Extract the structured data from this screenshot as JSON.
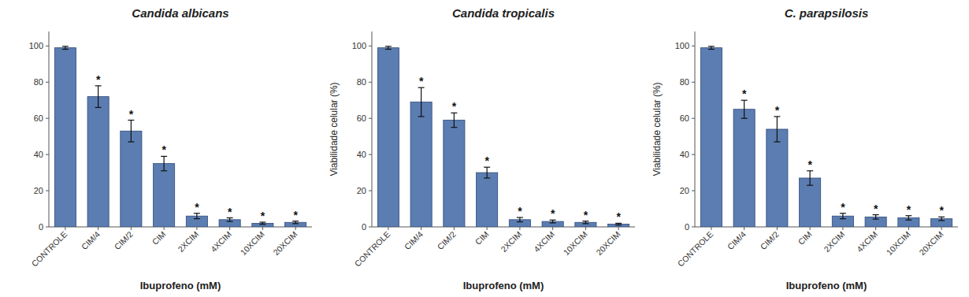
{
  "chart_data": [
    {
      "type": "bar",
      "title": "Candida albicans",
      "xlabel": "Ibuprofeno (mM)",
      "categories": [
        "CONTROLE",
        "CIM/4",
        "CIM/2",
        "CIM",
        "2XCIM",
        "4XCIM",
        "10XCIM",
        "20XCIM"
      ],
      "values": [
        99,
        72,
        53,
        35,
        6,
        4,
        2,
        2.5
      ],
      "errors": [
        0.8,
        6,
        6,
        4,
        1.5,
        1.0,
        0.6,
        0.7
      ],
      "annotations": [
        {
          "category": "CIM/4",
          "text": "*"
        },
        {
          "category": "CIM/2",
          "text": "*"
        },
        {
          "category": "CIM",
          "text": "*"
        },
        {
          "category": "2XCIM",
          "text": "*"
        },
        {
          "category": "4XCIM",
          "text": "*"
        },
        {
          "category": "10XCIM",
          "text": "*"
        },
        {
          "category": "20XCIM",
          "text": "*"
        }
      ],
      "color": "#5b7db1",
      "ylim": [
        0,
        108
      ],
      "yticks": [
        0,
        20,
        40,
        60,
        80,
        100
      ]
    },
    {
      "type": "bar",
      "title": "Candida tropicalis",
      "xlabel": "Ibuprofeno (mM)",
      "ylabel": "Viabilidade celular (%)",
      "categories": [
        "CONTROLE",
        "CIM/4",
        "CIM/2",
        "CIM",
        "2XCIM",
        "4XCIM",
        "10XCIM",
        "20XCIM"
      ],
      "values": [
        99,
        69,
        59,
        30,
        4,
        3,
        2.5,
        1.5
      ],
      "errors": [
        0.8,
        8,
        4,
        3,
        1.2,
        0.8,
        0.7,
        0.5
      ],
      "annotations": [
        {
          "category": "CIM/4",
          "text": "*"
        },
        {
          "category": "CIM/2",
          "text": "*"
        },
        {
          "category": "CIM",
          "text": "*"
        },
        {
          "category": "2XCIM",
          "text": "*"
        },
        {
          "category": "4XCIM",
          "text": "*"
        },
        {
          "category": "10XCIM",
          "text": "*"
        },
        {
          "category": "20XCIM",
          "text": "*"
        }
      ],
      "color": "#5b7db1",
      "ylim": [
        0,
        108
      ],
      "yticks": [
        0,
        20,
        40,
        60,
        80,
        100
      ]
    },
    {
      "type": "bar",
      "title": "C. parapsilosis",
      "xlabel": "Ibuprofeno (mM)",
      "ylabel": "Viabilidade celular (%)",
      "categories": [
        "CONTROLE",
        "CIM/4",
        "CIM/2",
        "CIM",
        "2XCIM",
        "4XCIM",
        "10XCIM",
        "20XCIM"
      ],
      "values": [
        99,
        65,
        54,
        27,
        6,
        5.5,
        5,
        4.5
      ],
      "errors": [
        0.8,
        5,
        7,
        4,
        1.5,
        1.2,
        1.2,
        1.0
      ],
      "annotations": [
        {
          "category": "CIM/4",
          "text": "*"
        },
        {
          "category": "CIM/2",
          "text": "*"
        },
        {
          "category": "CIM",
          "text": "*"
        },
        {
          "category": "2XCIM",
          "text": "*"
        },
        {
          "category": "4XCIM",
          "text": "*"
        },
        {
          "category": "10XCIM",
          "text": "*"
        },
        {
          "category": "20XCIM",
          "text": "*"
        }
      ],
      "color": "#5b7db1",
      "ylim": [
        0,
        108
      ],
      "yticks": [
        0,
        20,
        40,
        60,
        80,
        100
      ]
    }
  ]
}
